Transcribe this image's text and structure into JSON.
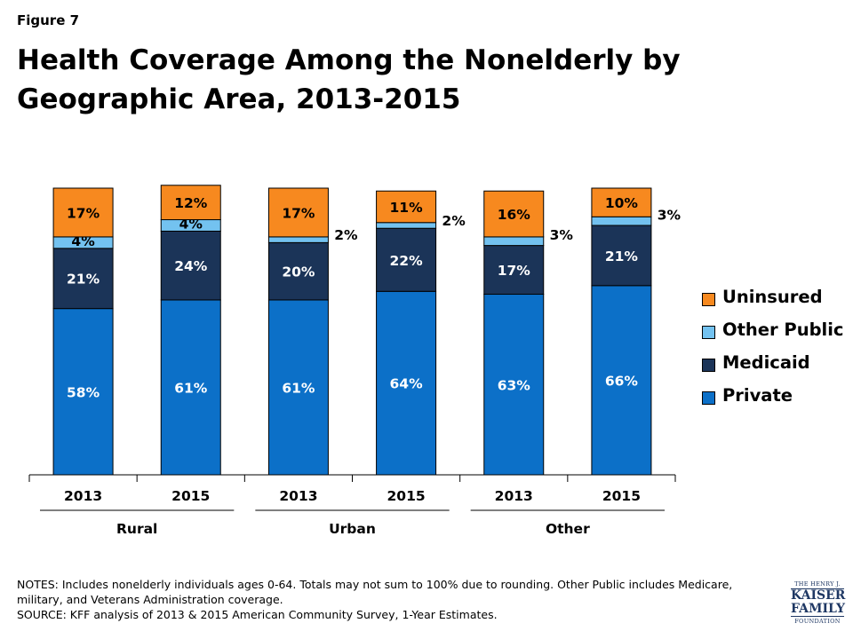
{
  "figure_label": "Figure 7",
  "title": "Health Coverage Among the Nonelderly by Geographic Area, 2013-2015",
  "colors": {
    "Uninsured": "#f7891f",
    "Other Public": "#73c2f0",
    "Medicaid": "#1b3458",
    "Private": "#0c70c8"
  },
  "legend": [
    "Uninsured",
    "Other Public",
    "Medicaid",
    "Private"
  ],
  "chart_data": {
    "type": "bar",
    "stacked": true,
    "categories": [
      "2013",
      "2015",
      "2013",
      "2015",
      "2013",
      "2015"
    ],
    "groups": [
      {
        "name": "Rural",
        "categories": [
          "2013",
          "2015"
        ]
      },
      {
        "name": "Urban",
        "categories": [
          "2013",
          "2015"
        ]
      },
      {
        "name": "Other",
        "categories": [
          "2013",
          "2015"
        ]
      }
    ],
    "series": [
      {
        "name": "Private",
        "values": [
          58,
          61,
          61,
          64,
          63,
          66
        ],
        "labels": [
          "58%",
          "61%",
          "61%",
          "64%",
          "63%",
          "66%"
        ]
      },
      {
        "name": "Medicaid",
        "values": [
          21,
          24,
          20,
          22,
          17,
          21
        ],
        "labels": [
          "21%",
          "24%",
          "20%",
          "22%",
          "17%",
          "21%"
        ]
      },
      {
        "name": "Other Public",
        "values": [
          4,
          4,
          2,
          2,
          3,
          3
        ],
        "labels": [
          "4%",
          "4%",
          "2%",
          "2%",
          "3%",
          "3%"
        ]
      },
      {
        "name": "Uninsured",
        "values": [
          17,
          12,
          17,
          11,
          16,
          10
        ],
        "labels": [
          "17%",
          "12%",
          "17%",
          "11%",
          "16%",
          "10%"
        ]
      }
    ],
    "ylim": [
      0,
      100
    ],
    "grid": false,
    "legend_position": "right"
  },
  "notes": {
    "line1": "NOTES: Includes nonelderly individuals ages 0-64. Totals may not sum to 100% due to rounding. Other Public includes Medicare, military, and Veterans Administration coverage.",
    "line2": "SOURCE: KFF analysis of 2013 & 2015 American Community Survey, 1-Year Estimates."
  },
  "logo": {
    "line1": "THE HENRY J.",
    "line2": "KAISER",
    "line3": "FAMILY",
    "line4": "FOUNDATION"
  }
}
